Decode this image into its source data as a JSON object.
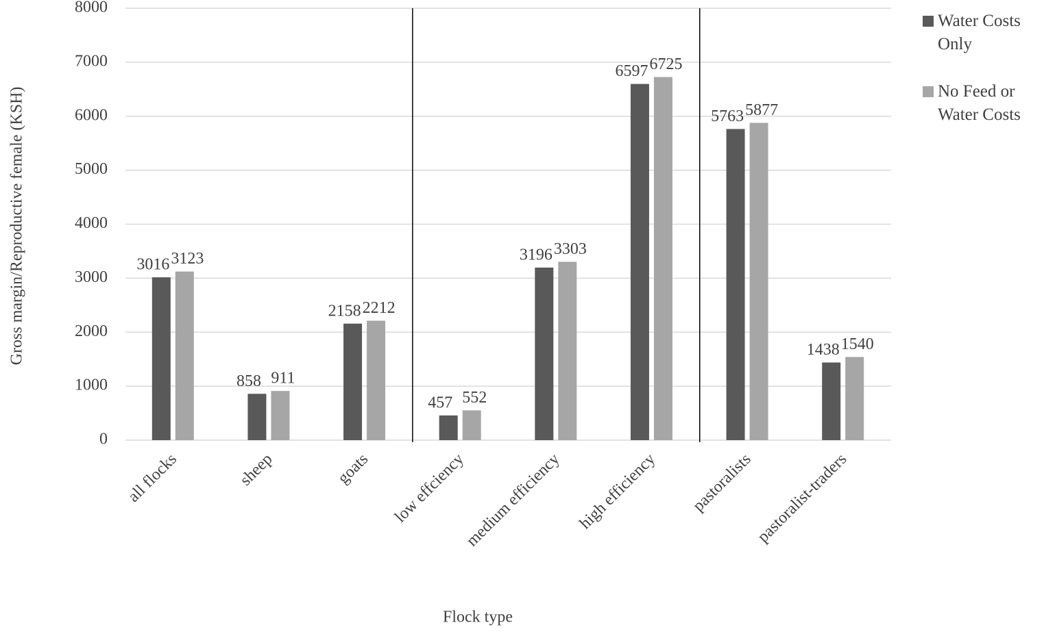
{
  "chart_data": {
    "type": "bar",
    "x_label": "Flock type",
    "y_label": "Gross margin/Reproductive female (KSH)",
    "categories": [
      "all flocks",
      "sheep",
      "goats",
      "low effciency",
      "medium efficiency",
      "high efficiency",
      "pastoralists",
      "pastoralist-traders"
    ],
    "series": [
      {
        "name": "Water Costs Only",
        "color": "#595959",
        "values": [
          3016,
          858,
          2158,
          457,
          3196,
          6597,
          5763,
          1438
        ]
      },
      {
        "name": "No Feed or Water Costs",
        "color": "#a6a6a6",
        "values": [
          3123,
          911,
          2212,
          552,
          3303,
          6725,
          5877,
          1540
        ]
      }
    ],
    "ylim": [
      0,
      8000
    ],
    "yticks": [
      0,
      1000,
      2000,
      3000,
      4000,
      5000,
      6000,
      7000,
      8000
    ],
    "grid": true
  }
}
